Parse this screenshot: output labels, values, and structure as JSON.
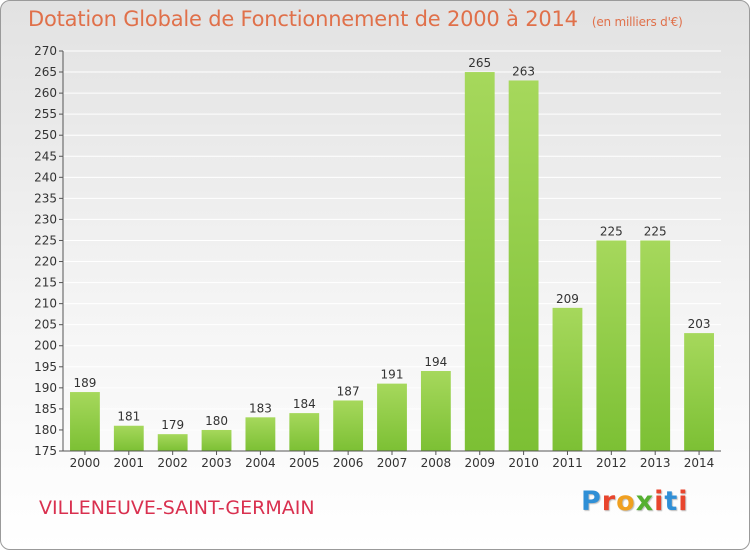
{
  "header": {
    "title": "Dotation Globale de Fonctionnement de 2000 à 2014",
    "unit": "(en milliers d'€)"
  },
  "footer": {
    "city": "VILLENEUVE-SAINT-GERMAIN",
    "logo_text": "Proxiti",
    "logo_colors": [
      "#2f8fd6",
      "#e8452d",
      "#f0a020",
      "#55b030",
      "#e8452d",
      "#2f8fd6",
      "#e8452d"
    ]
  },
  "chart_data": {
    "type": "bar",
    "categories": [
      "2000",
      "2001",
      "2002",
      "2003",
      "2004",
      "2005",
      "2006",
      "2007",
      "2008",
      "2009",
      "2010",
      "2011",
      "2012",
      "2013",
      "2014"
    ],
    "values": [
      189,
      181,
      179,
      180,
      183,
      184,
      187,
      191,
      194,
      265,
      263,
      209,
      225,
      225,
      203
    ],
    "title": "Dotation Globale de Fonctionnement de 2000 à 2014",
    "xlabel": "",
    "ylabel": "",
    "ylim": [
      175,
      270
    ],
    "yticks": [
      175,
      180,
      185,
      190,
      195,
      200,
      205,
      210,
      215,
      220,
      225,
      230,
      235,
      240,
      245,
      250,
      255,
      260,
      265,
      270
    ],
    "grid": true,
    "bar_color": "#7cc034",
    "bar_color_light": "#a6d85c"
  }
}
